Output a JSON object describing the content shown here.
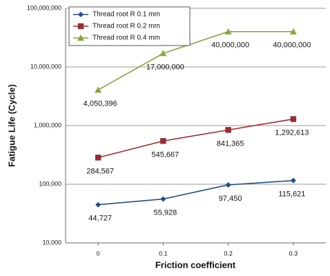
{
  "chart_data": {
    "type": "line",
    "y_label": "Fatigue Life (Cycle)",
    "x_label": "Friction coefficient",
    "x": [
      0,
      0.1,
      0.2,
      0.3
    ],
    "xlim": [
      -0.05,
      0.35
    ],
    "xticks": [
      0,
      0.1,
      0.2,
      0.3
    ],
    "ylim": [
      10000,
      100000000
    ],
    "y_scale": "log",
    "yticks": [
      {
        "value": 10000,
        "label": "10,000"
      },
      {
        "value": 100000,
        "label": "100,000"
      },
      {
        "value": 1000000,
        "label": "1,000,000"
      },
      {
        "value": 10000000,
        "label": "10,000,000"
      },
      {
        "value": 100000000,
        "label": "100,000,000"
      }
    ],
    "grid": true,
    "legend": "top-left",
    "series": [
      {
        "name": "Thread root R 0.1 mm",
        "color": "#1f4e8c",
        "marker": "diamond",
        "values": [
          44727,
          55928,
          97450,
          115621
        ],
        "value_labels": [
          "44,727",
          "55,928",
          "97,450",
          "115,621"
        ]
      },
      {
        "name": "Thread root R 0.2 mm",
        "color": "#a3282b",
        "marker": "square",
        "values": [
          284567,
          545667,
          841365,
          1292613
        ],
        "value_labels": [
          "284,567",
          "545,667",
          "841,365",
          "1,292,613"
        ]
      },
      {
        "name": "Thread root R 0.4 mm",
        "color": "#86a83a",
        "marker": "triangle",
        "values": [
          4050396,
          17000000,
          40000000,
          40000000
        ],
        "value_labels": [
          "4,050,396",
          "17,000,000",
          "40,000,000",
          "40,000,000"
        ]
      }
    ]
  }
}
